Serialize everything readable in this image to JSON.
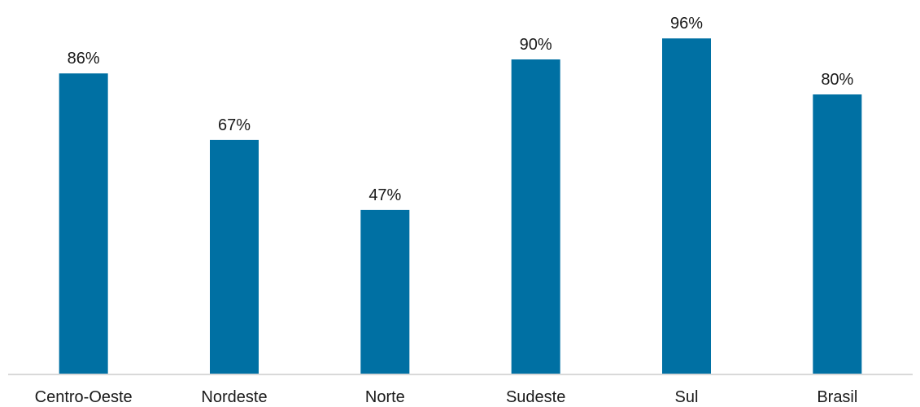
{
  "chart_data": {
    "type": "bar",
    "categories": [
      "Centro-Oeste",
      "Nordeste",
      "Norte",
      "Sudeste",
      "Sul",
      "Brasil"
    ],
    "values": [
      86,
      67,
      47,
      90,
      96,
      80
    ],
    "data_labels": [
      "86%",
      "67%",
      "47%",
      "90%",
      "96%",
      "80%"
    ],
    "title": "",
    "xlabel": "",
    "ylabel": "",
    "ylim": [
      0,
      100
    ],
    "grid": false,
    "colors": {
      "bar": "#0070a3",
      "axis": "#d9d9d9",
      "text": "#1a1a1a"
    }
  }
}
